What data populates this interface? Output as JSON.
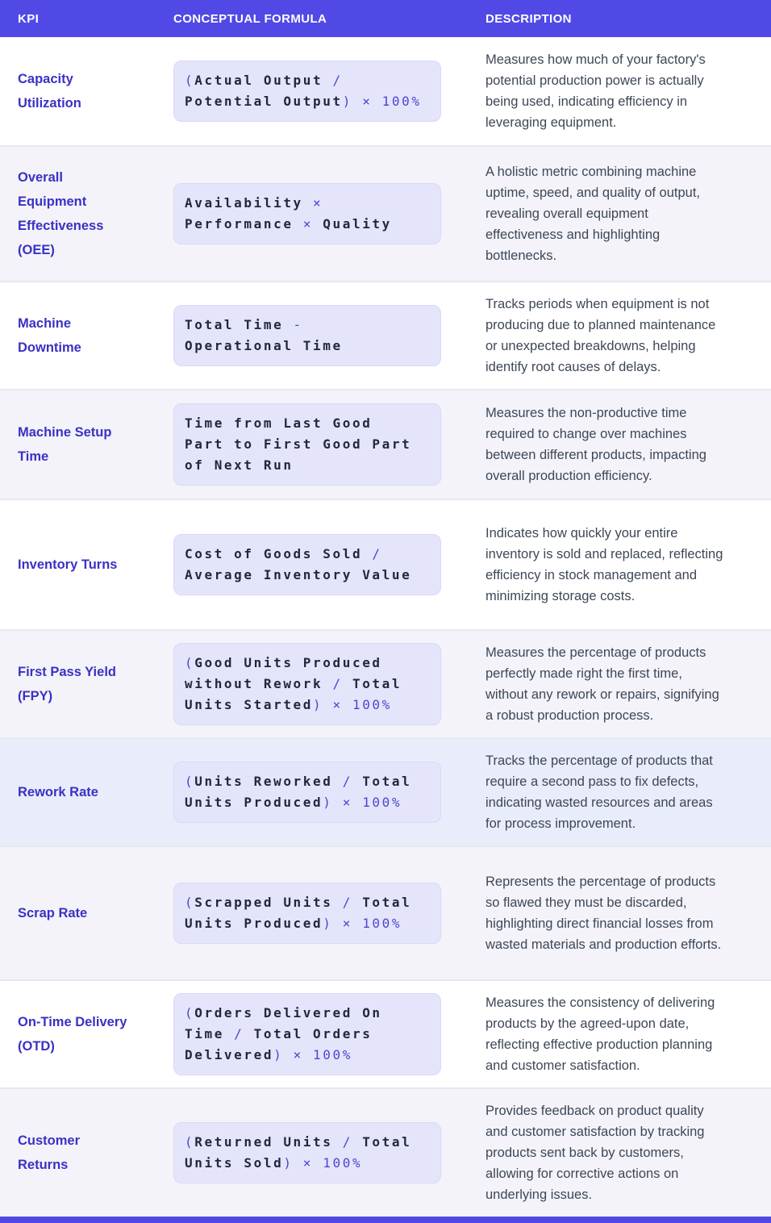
{
  "colors": {
    "accent": "#5049e6",
    "kpi_text": "#3a31c4",
    "description_text": "#3d4757",
    "row_light": "#f3f3f9",
    "row_highlight": "#e9ecfb",
    "formula_box_bg": "#e4e5fb",
    "formula_term": "#222741",
    "formula_operator": "#4d45cf"
  },
  "table": {
    "columns": [
      "KPI",
      "CONCEPTUAL FORMULA",
      "DESCRIPTION"
    ],
    "rows": [
      {
        "kpi": "Capacity Utilization",
        "shade": "white",
        "formula_text": "(Actual Output / Potential Output) × 100%",
        "formula_lines": [
          [
            [
              "(",
              "op"
            ],
            [
              "Actual Output",
              "term"
            ],
            [
              " /",
              "op"
            ]
          ],
          [
            [
              "Potential Output",
              "term"
            ],
            [
              ") × 100%",
              "op"
            ]
          ]
        ],
        "description": "Measures how much of your factory's potential production power is actually being used, indicating efficiency in leveraging equipment."
      },
      {
        "kpi": "Overall Equipment Effectiveness (OEE)",
        "shade": "light",
        "formula_text": "Availability × Performance × Quality",
        "formula_lines": [
          [
            [
              "Availability",
              "term"
            ],
            [
              " ×",
              "op"
            ]
          ],
          [
            [
              "Performance",
              "term"
            ],
            [
              " × ",
              "op"
            ],
            [
              "Quality",
              "term"
            ]
          ]
        ],
        "description": "A holistic metric combining machine uptime, speed, and quality of output, revealing overall equipment effectiveness and highlighting bottlenecks."
      },
      {
        "kpi": "Machine Downtime",
        "shade": "white",
        "formula_text": "Total Time - Operational Time",
        "formula_lines": [
          [
            [
              "Total Time",
              "term"
            ],
            [
              " -",
              "op"
            ]
          ],
          [
            [
              "Operational Time",
              "term"
            ]
          ]
        ],
        "description": "Tracks periods when equipment is not producing due to planned maintenance or unexpected breakdowns, helping identify root causes of delays."
      },
      {
        "kpi": "Machine Setup Time",
        "shade": "light",
        "formula_text": "Time from Last Good Part to First Good Part of Next Run",
        "formula_lines": [
          [
            [
              "Time from Last Good",
              "term"
            ]
          ],
          [
            [
              "Part to First Good Part",
              "term"
            ]
          ],
          [
            [
              "of Next Run",
              "term"
            ]
          ]
        ],
        "description": "Measures the non-productive time required to change over machines between different products, impacting overall production efficiency."
      },
      {
        "kpi": "Inventory Turns",
        "shade": "white",
        "formula_text": "Cost of Goods Sold / Average Inventory Value",
        "formula_lines": [
          [
            [
              "Cost of Goods Sold",
              "term"
            ],
            [
              " /",
              "op"
            ]
          ],
          [
            [
              "Average Inventory Value",
              "term"
            ]
          ]
        ],
        "description": "Indicates how quickly your entire inventory is sold and replaced, reflecting efficiency in stock management and minimizing storage costs."
      },
      {
        "kpi": "First Pass Yield (FPY)",
        "shade": "light",
        "formula_text": "(Good Units Produced without Rework / Total Units Started) × 100%",
        "formula_lines": [
          [
            [
              "(",
              "op"
            ],
            [
              "Good Units Produced",
              "term"
            ]
          ],
          [
            [
              "without Rework",
              "term"
            ],
            [
              " / ",
              "op"
            ],
            [
              "Total",
              "term"
            ]
          ],
          [
            [
              "Units Started",
              "term"
            ],
            [
              ") × 100%",
              "op"
            ]
          ]
        ],
        "description": "Measures the percentage of products perfectly made right the first time, without any rework or repairs, signifying a robust production process."
      },
      {
        "kpi": "Rework Rate",
        "shade": "highlight",
        "formula_text": "(Units Reworked / Total Units Produced) × 100%",
        "formula_lines": [
          [
            [
              "(",
              "op"
            ],
            [
              "Units Reworked",
              "term"
            ],
            [
              " / ",
              "op"
            ],
            [
              "Total",
              "term"
            ]
          ],
          [
            [
              "Units Produced",
              "term"
            ],
            [
              ") × 100%",
              "op"
            ]
          ]
        ],
        "description": "Tracks the percentage of products that require a second pass to fix defects, indicating wasted resources and areas for process improvement."
      },
      {
        "kpi": "Scrap Rate",
        "shade": "light",
        "formula_text": "(Scrapped Units / Total Units Produced) × 100%",
        "formula_lines": [
          [
            [
              "(",
              "op"
            ],
            [
              "Scrapped Units",
              "term"
            ],
            [
              " / ",
              "op"
            ],
            [
              "Total",
              "term"
            ]
          ],
          [
            [
              "Units Produced",
              "term"
            ],
            [
              ") × 100%",
              "op"
            ]
          ]
        ],
        "description": "Represents the percentage of products so flawed they must be discarded, highlighting direct financial losses from wasted materials and production efforts."
      },
      {
        "kpi": "On-Time Delivery (OTD)",
        "shade": "white",
        "formula_text": "(Orders Delivered On Time / Total Orders Delivered) × 100%",
        "formula_lines": [
          [
            [
              "(",
              "op"
            ],
            [
              "Orders Delivered On",
              "term"
            ]
          ],
          [
            [
              "Time",
              "term"
            ],
            [
              " / ",
              "op"
            ],
            [
              "Total Orders",
              "term"
            ]
          ],
          [
            [
              "Delivered",
              "term"
            ],
            [
              ") × 100%",
              "op"
            ]
          ]
        ],
        "description": "Measures the consistency of delivering products by the agreed-upon date, reflecting effective production planning and customer satisfaction."
      },
      {
        "kpi": "Customer Returns",
        "shade": "light",
        "formula_text": "(Returned Units / Total Units Sold) × 100%",
        "formula_lines": [
          [
            [
              "(",
              "op"
            ],
            [
              "Returned Units",
              "term"
            ],
            [
              " / ",
              "op"
            ],
            [
              "Total",
              "term"
            ]
          ],
          [
            [
              "Units Sold",
              "term"
            ],
            [
              ") × 100%",
              "op"
            ]
          ]
        ],
        "description": "Provides feedback on product quality and customer satisfaction by tracking products sent back by customers, allowing for corrective actions on underlying issues."
      }
    ]
  }
}
